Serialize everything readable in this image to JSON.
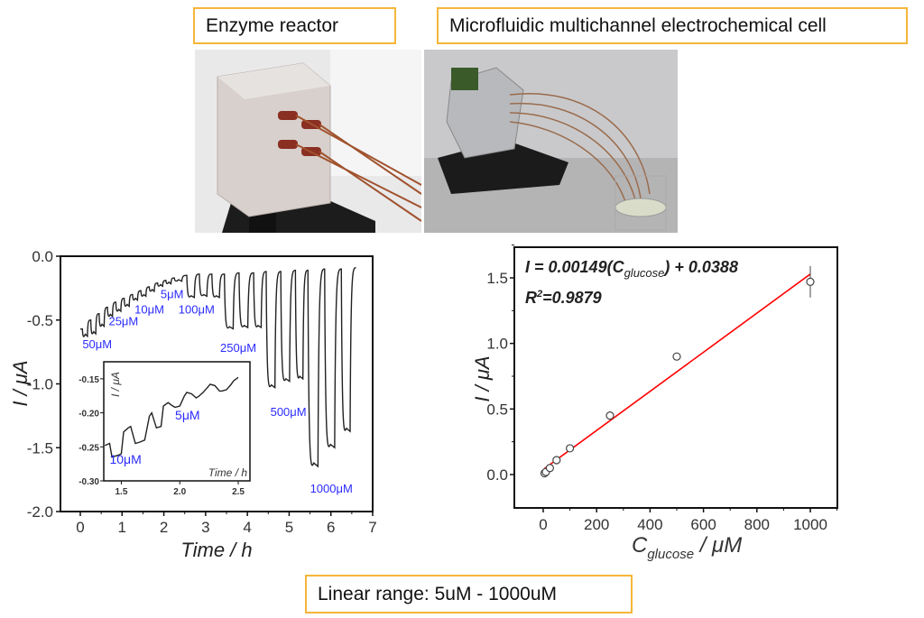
{
  "labels": {
    "enzyme_reactor": "Enzyme reactor",
    "electrochemical_cell": "Microfluidic multichannel electrochemical cell",
    "linear_range": "Linear range: 5uM - 1000uM"
  },
  "colors": {
    "box_border": "#f5b63a",
    "annotation": "#2b2bff",
    "fit_line": "#ff0000",
    "trace": "#222222"
  },
  "chart_data": [
    {
      "type": "line",
      "title": "",
      "xlabel": "Time / h",
      "ylabel": "I / μA",
      "xlim": [
        -0.5,
        7
      ],
      "ylim": [
        -2.0,
        0.0
      ],
      "xticks": [
        "0",
        "1",
        "2",
        "3",
        "4",
        "5",
        "6",
        "7"
      ],
      "yticks": [
        "0.0",
        "-0.5",
        "-1.0",
        "-1.5",
        "-2.0"
      ],
      "annotations": [
        "50μM",
        "25μM",
        "10μM",
        "5μM",
        "100μM",
        "250μM",
        "500μM",
        "1000μM"
      ],
      "pulses": [
        {
          "t": 0.05,
          "base": -0.57,
          "min": -0.64
        },
        {
          "t": 0.25,
          "base": -0.5,
          "min": -0.62
        },
        {
          "t": 0.45,
          "base": -0.45,
          "min": -0.56
        },
        {
          "t": 0.65,
          "base": -0.4,
          "min": -0.48
        },
        {
          "t": 0.85,
          "base": -0.36,
          "min": -0.44
        },
        {
          "t": 1.05,
          "base": -0.33,
          "min": -0.4
        },
        {
          "t": 1.25,
          "base": -0.3,
          "min": -0.35
        },
        {
          "t": 1.45,
          "base": -0.27,
          "min": -0.32
        },
        {
          "t": 1.65,
          "base": -0.24,
          "min": -0.28
        },
        {
          "t": 1.85,
          "base": -0.21,
          "min": -0.24
        },
        {
          "t": 2.05,
          "base": -0.19,
          "min": -0.22
        },
        {
          "t": 2.25,
          "base": -0.17,
          "min": -0.2
        },
        {
          "t": 2.55,
          "base": -0.15,
          "min": -0.33
        },
        {
          "t": 2.85,
          "base": -0.14,
          "min": -0.32
        },
        {
          "t": 3.15,
          "base": -0.14,
          "min": -0.33
        },
        {
          "t": 3.45,
          "base": -0.14,
          "min": -0.58
        },
        {
          "t": 3.8,
          "base": -0.13,
          "min": -0.57
        },
        {
          "t": 4.15,
          "base": -0.13,
          "min": -0.57
        },
        {
          "t": 4.45,
          "base": -0.12,
          "min": -1.05
        },
        {
          "t": 4.8,
          "base": -0.12,
          "min": -1.0
        },
        {
          "t": 5.15,
          "base": -0.11,
          "min": -0.98
        },
        {
          "t": 5.45,
          "base": -0.11,
          "min": -1.68
        },
        {
          "t": 5.85,
          "base": -0.1,
          "min": -1.53
        },
        {
          "t": 6.25,
          "base": -0.1,
          "min": -1.4
        }
      ],
      "end": {
        "t": 6.6,
        "value": -0.09
      },
      "inset": {
        "xlabel": "Time / h",
        "ylabel": "I / μA",
        "xlim": [
          1.35,
          2.6
        ],
        "ylim": [
          -0.3,
          -0.125
        ],
        "xticks": [
          "1.5",
          "2.0",
          "2.5"
        ],
        "yticks": [
          "-0.15",
          "-0.20",
          "-0.25",
          "-0.30"
        ],
        "annotations": [
          "10μM",
          "5μM"
        ],
        "x": [
          1.36,
          1.4,
          1.42,
          1.48,
          1.5,
          1.52,
          1.56,
          1.58,
          1.62,
          1.66,
          1.7,
          1.74,
          1.76,
          1.8,
          1.84,
          1.86,
          1.9,
          1.94,
          1.96,
          2.0,
          2.04,
          2.06,
          2.1,
          2.14,
          2.16,
          2.2,
          2.24,
          2.26,
          2.3,
          2.34,
          2.36,
          2.4,
          2.44,
          2.46,
          2.5
        ],
        "y": [
          -0.248,
          -0.245,
          -0.265,
          -0.262,
          -0.26,
          -0.228,
          -0.222,
          -0.22,
          -0.245,
          -0.243,
          -0.24,
          -0.205,
          -0.2,
          -0.222,
          -0.22,
          -0.19,
          -0.185,
          -0.19,
          -0.192,
          -0.19,
          -0.175,
          -0.17,
          -0.172,
          -0.178,
          -0.176,
          -0.17,
          -0.162,
          -0.158,
          -0.16,
          -0.168,
          -0.168,
          -0.166,
          -0.158,
          -0.153,
          -0.148
        ]
      }
    },
    {
      "type": "scatter",
      "xlabel": "C_glucose / μM",
      "xlabel_main": "C",
      "xlabel_sub": "glucose",
      "xlabel_unit": " / μM",
      "ylabel": "I / μA",
      "xlim": [
        -100,
        1050
      ],
      "ylim": [
        -0.25,
        1.75
      ],
      "xticks": [
        "0",
        "200",
        "400",
        "600",
        "800",
        "1000"
      ],
      "yticks": [
        "0.0",
        "0.5",
        "1.0",
        "1.5"
      ],
      "x": [
        5,
        10,
        25,
        50,
        100,
        250,
        500,
        1000
      ],
      "y": [
        0.01,
        0.02,
        0.05,
        0.11,
        0.2,
        0.45,
        0.9,
        1.47
      ],
      "error": [
        0.02,
        0.02,
        0.02,
        0.02,
        0.02,
        0.02,
        0.02,
        0.12
      ],
      "fit": {
        "slope": 0.00149,
        "intercept": 0.0388,
        "x_range": [
          5,
          1000
        ]
      },
      "equation_prefix": "I = 0.00149(",
      "equation_var": "C",
      "equation_sub": "glucose",
      "equation_suffix": ") + 0.0388",
      "r2_label": "R",
      "r2_sup": "2",
      "r2_value": "=0.9879"
    }
  ]
}
